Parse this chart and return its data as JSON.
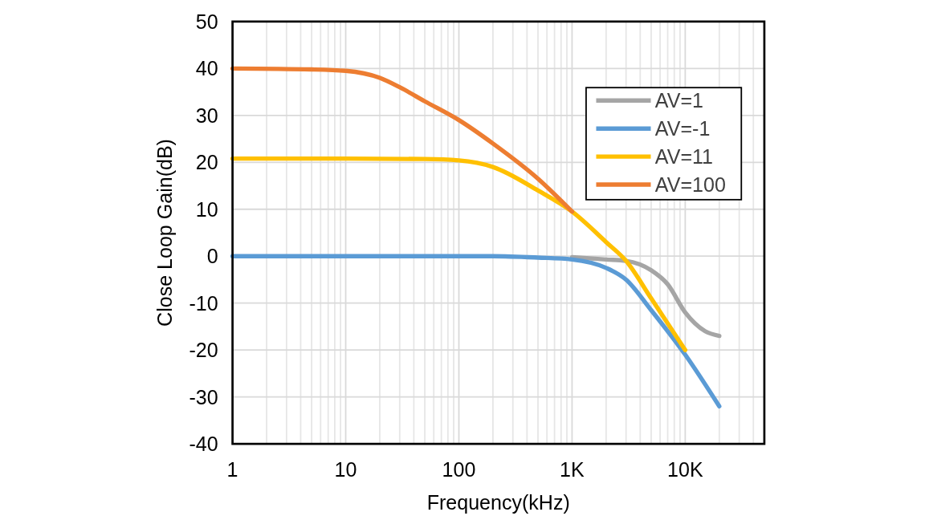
{
  "chart_data": {
    "type": "line",
    "xlabel": "Frequency(kHz)",
    "ylabel": "Close Loop Gain(dB)",
    "log": "x",
    "grid": true,
    "legend": "top right",
    "marker": "none",
    "line_style": "solid",
    "xlim": [
      1,
      50000
    ],
    "xticks": [
      1,
      10,
      100,
      {
        "value": 1000,
        "label": "1K"
      },
      {
        "value": 10000,
        "label": "10K"
      }
    ],
    "ylim": [
      -40,
      50
    ],
    "yticks": [
      -40,
      -30,
      -20,
      -10,
      0,
      10,
      20,
      30,
      40,
      50
    ],
    "series": [
      {
        "name": "AV=1",
        "color": "#a5a5a5",
        "x": [
          1000,
          2000,
          3000,
          5000,
          7000,
          10000,
          15000,
          20000
        ],
        "values": [
          -0.2,
          -0.7,
          -1,
          -3,
          -6,
          -12,
          -16,
          -17
        ]
      },
      {
        "name": "AV=-1",
        "color": "#5b9bd5",
        "x": [
          1,
          10,
          100,
          200,
          500,
          1000,
          2000,
          3000,
          5000,
          10000,
          20000
        ],
        "values": [
          0,
          0,
          0,
          0,
          -0.3,
          -0.7,
          -2.5,
          -5,
          -11.5,
          -21,
          -32
        ]
      },
      {
        "name": "AV=11",
        "color": "#ffc000",
        "x": [
          1,
          10,
          50,
          100,
          200,
          500,
          1000,
          2000,
          3000,
          5000,
          10000
        ],
        "values": [
          20.8,
          20.8,
          20.7,
          20.4,
          19,
          14,
          9.5,
          3,
          -1,
          -9,
          -20
        ]
      },
      {
        "name": "AV=100",
        "color": "#ed7d31",
        "x": [
          1,
          5,
          10,
          20,
          30,
          50,
          100,
          200,
          500,
          1000
        ],
        "values": [
          40,
          39.8,
          39.5,
          38,
          36,
          33,
          29,
          24,
          16.5,
          9.5
        ]
      }
    ]
  }
}
